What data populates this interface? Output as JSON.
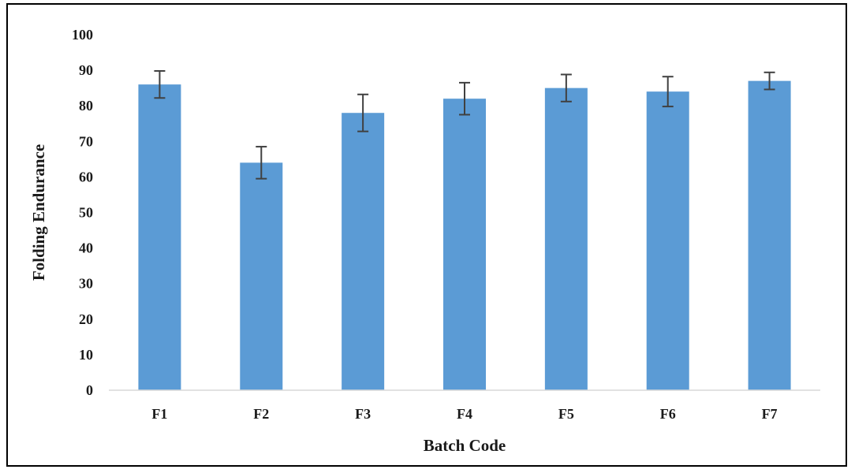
{
  "chart_data": {
    "type": "bar",
    "title": "",
    "xlabel": "Batch Code",
    "ylabel": "Folding Endurance",
    "categories": [
      "F1",
      "F2",
      "F3",
      "F4",
      "F5",
      "F6",
      "F7"
    ],
    "values": [
      86,
      64,
      78,
      82,
      85,
      84,
      87
    ],
    "error": [
      3.8,
      4.5,
      5.2,
      4.5,
      3.8,
      4.2,
      2.4
    ],
    "ylim": [
      0,
      100
    ],
    "yticks": [
      "0",
      "10",
      "20",
      "30",
      "40",
      "50",
      "60",
      "70",
      "80",
      "90",
      "100"
    ],
    "grid": false,
    "legend": "none",
    "bar_color": "#5b9bd5",
    "error_color": "#404040"
  }
}
